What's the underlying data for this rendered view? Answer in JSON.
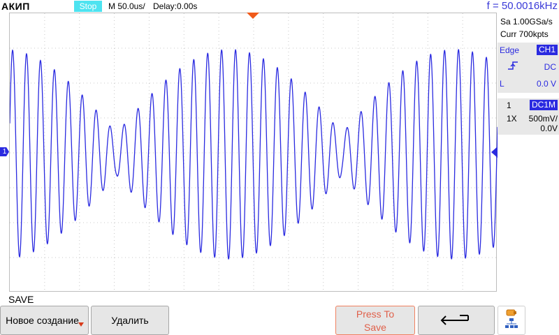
{
  "topbar": {
    "brand": "АКИП",
    "run_state": "Stop",
    "timebase": "M 50.0us/",
    "delay": "Delay:0.00s",
    "frequency": "f = 50.0016kHz"
  },
  "acquisition": {
    "sample_rate": "Sa 1.00GSa/s",
    "memory_depth": "Curr 700kpts"
  },
  "trigger": {
    "type": "Edge",
    "source": "CH1",
    "slope_icon": "rising-edge-icon",
    "coupling": "DC",
    "level_label": "L",
    "level": "0.0 V"
  },
  "channel1": {
    "number": "1",
    "coupling": "DC1M",
    "probe": "1X",
    "scale": "500mV/",
    "offset": "0.0V",
    "marker": "1",
    "color": "#2a2ae0"
  },
  "menu": {
    "title": "SAVE",
    "softkeys": {
      "new": "Новое создание",
      "delete": "Удалить",
      "press_to_save_line1": "Press To",
      "press_to_save_line2": "Save",
      "back_icon": "back-arrow-icon",
      "storage_icon": "storage-network-icon"
    }
  },
  "waveform": {
    "signal_frequency_khz": 50.0016,
    "envelope_period_us": 324,
    "peak_divisions": 3.0,
    "min_divisions": 0.6
  },
  "colors": {
    "trace": "#2a2ae0",
    "run_state_bg": "#4de3f0",
    "trigger_marker": "#f05a1a",
    "accent": "#2a2ae0"
  }
}
